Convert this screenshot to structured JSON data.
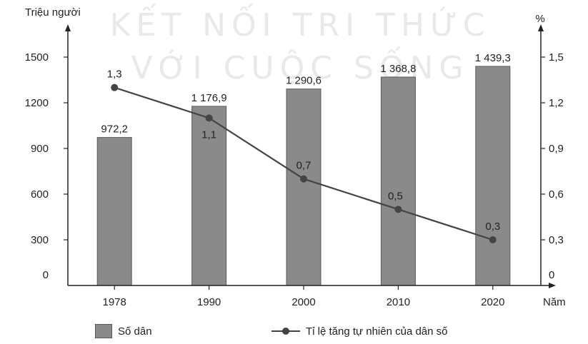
{
  "watermark": {
    "line1": "KẾT NỐI TRI THỨC",
    "line2": "VỚI CUỘC SỐNG"
  },
  "chart_data": {
    "type": "bar+line",
    "categories": [
      "1978",
      "1990",
      "2000",
      "2010",
      "2020"
    ],
    "xlabel": "Năm",
    "y_left": {
      "label": "Triệu người",
      "ticks": [
        "0",
        "300",
        "600",
        "900",
        "1200",
        "1500"
      ],
      "range": [
        0,
        1650
      ]
    },
    "y_right": {
      "label": "%",
      "ticks": [
        "0",
        "0,3",
        "0,6",
        "0,9",
        "1,2",
        "1,5"
      ],
      "range": [
        0,
        1.65
      ]
    },
    "series": [
      {
        "name": "Số dân",
        "type": "bar",
        "axis": "left",
        "values": [
          972.2,
          1176.9,
          1290.6,
          1368.8,
          1439.3
        ],
        "labels": [
          "972,2",
          "1 176,9",
          "1 290,6",
          "1 368,8",
          "1 439,3"
        ],
        "color": "#8a8a8a"
      },
      {
        "name": "Tỉ lệ tăng tự nhiên của dân số",
        "type": "line",
        "axis": "right",
        "values": [
          1.3,
          1.1,
          0.7,
          0.5,
          0.3
        ],
        "labels": [
          "1,3",
          "1,1",
          "0,7",
          "0,5",
          "0,3"
        ],
        "color": "#444444"
      }
    ],
    "grid": false,
    "legend": "bottom"
  }
}
